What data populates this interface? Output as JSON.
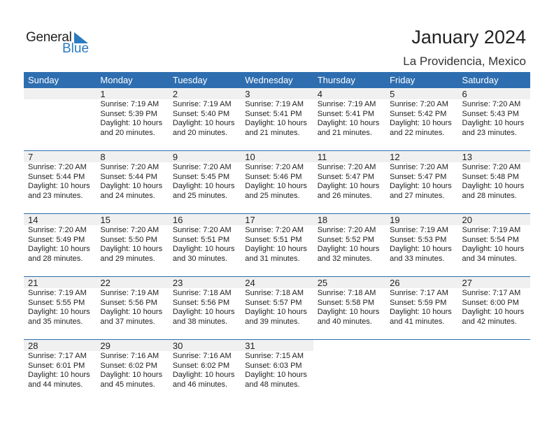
{
  "logo": {
    "general": "General",
    "blue": "Blue"
  },
  "title": "January 2024",
  "location": "La Providencia, Mexico",
  "colors": {
    "header": "#2e6eb0",
    "band": "#f0f0f0",
    "logo_blue": "#2a7bc0"
  },
  "weekdays": [
    "Sunday",
    "Monday",
    "Tuesday",
    "Wednesday",
    "Thursday",
    "Friday",
    "Saturday"
  ],
  "weeks": [
    [
      null,
      {
        "day": "1",
        "sunrise": "Sunrise: 7:19 AM",
        "sunset": "Sunset: 5:39 PM",
        "daylight": "Daylight: 10 hours",
        "minutes": "and 20 minutes."
      },
      {
        "day": "2",
        "sunrise": "Sunrise: 7:19 AM",
        "sunset": "Sunset: 5:40 PM",
        "daylight": "Daylight: 10 hours",
        "minutes": "and 20 minutes."
      },
      {
        "day": "3",
        "sunrise": "Sunrise: 7:19 AM",
        "sunset": "Sunset: 5:41 PM",
        "daylight": "Daylight: 10 hours",
        "minutes": "and 21 minutes."
      },
      {
        "day": "4",
        "sunrise": "Sunrise: 7:19 AM",
        "sunset": "Sunset: 5:41 PM",
        "daylight": "Daylight: 10 hours",
        "minutes": "and 21 minutes."
      },
      {
        "day": "5",
        "sunrise": "Sunrise: 7:20 AM",
        "sunset": "Sunset: 5:42 PM",
        "daylight": "Daylight: 10 hours",
        "minutes": "and 22 minutes."
      },
      {
        "day": "6",
        "sunrise": "Sunrise: 7:20 AM",
        "sunset": "Sunset: 5:43 PM",
        "daylight": "Daylight: 10 hours",
        "minutes": "and 23 minutes."
      }
    ],
    [
      {
        "day": "7",
        "sunrise": "Sunrise: 7:20 AM",
        "sunset": "Sunset: 5:44 PM",
        "daylight": "Daylight: 10 hours",
        "minutes": "and 23 minutes."
      },
      {
        "day": "8",
        "sunrise": "Sunrise: 7:20 AM",
        "sunset": "Sunset: 5:44 PM",
        "daylight": "Daylight: 10 hours",
        "minutes": "and 24 minutes."
      },
      {
        "day": "9",
        "sunrise": "Sunrise: 7:20 AM",
        "sunset": "Sunset: 5:45 PM",
        "daylight": "Daylight: 10 hours",
        "minutes": "and 25 minutes."
      },
      {
        "day": "10",
        "sunrise": "Sunrise: 7:20 AM",
        "sunset": "Sunset: 5:46 PM",
        "daylight": "Daylight: 10 hours",
        "minutes": "and 25 minutes."
      },
      {
        "day": "11",
        "sunrise": "Sunrise: 7:20 AM",
        "sunset": "Sunset: 5:47 PM",
        "daylight": "Daylight: 10 hours",
        "minutes": "and 26 minutes."
      },
      {
        "day": "12",
        "sunrise": "Sunrise: 7:20 AM",
        "sunset": "Sunset: 5:47 PM",
        "daylight": "Daylight: 10 hours",
        "minutes": "and 27 minutes."
      },
      {
        "day": "13",
        "sunrise": "Sunrise: 7:20 AM",
        "sunset": "Sunset: 5:48 PM",
        "daylight": "Daylight: 10 hours",
        "minutes": "and 28 minutes."
      }
    ],
    [
      {
        "day": "14",
        "sunrise": "Sunrise: 7:20 AM",
        "sunset": "Sunset: 5:49 PM",
        "daylight": "Daylight: 10 hours",
        "minutes": "and 28 minutes."
      },
      {
        "day": "15",
        "sunrise": "Sunrise: 7:20 AM",
        "sunset": "Sunset: 5:50 PM",
        "daylight": "Daylight: 10 hours",
        "minutes": "and 29 minutes."
      },
      {
        "day": "16",
        "sunrise": "Sunrise: 7:20 AM",
        "sunset": "Sunset: 5:51 PM",
        "daylight": "Daylight: 10 hours",
        "minutes": "and 30 minutes."
      },
      {
        "day": "17",
        "sunrise": "Sunrise: 7:20 AM",
        "sunset": "Sunset: 5:51 PM",
        "daylight": "Daylight: 10 hours",
        "minutes": "and 31 minutes."
      },
      {
        "day": "18",
        "sunrise": "Sunrise: 7:20 AM",
        "sunset": "Sunset: 5:52 PM",
        "daylight": "Daylight: 10 hours",
        "minutes": "and 32 minutes."
      },
      {
        "day": "19",
        "sunrise": "Sunrise: 7:19 AM",
        "sunset": "Sunset: 5:53 PM",
        "daylight": "Daylight: 10 hours",
        "minutes": "and 33 minutes."
      },
      {
        "day": "20",
        "sunrise": "Sunrise: 7:19 AM",
        "sunset": "Sunset: 5:54 PM",
        "daylight": "Daylight: 10 hours",
        "minutes": "and 34 minutes."
      }
    ],
    [
      {
        "day": "21",
        "sunrise": "Sunrise: 7:19 AM",
        "sunset": "Sunset: 5:55 PM",
        "daylight": "Daylight: 10 hours",
        "minutes": "and 35 minutes."
      },
      {
        "day": "22",
        "sunrise": "Sunrise: 7:19 AM",
        "sunset": "Sunset: 5:56 PM",
        "daylight": "Daylight: 10 hours",
        "minutes": "and 37 minutes."
      },
      {
        "day": "23",
        "sunrise": "Sunrise: 7:18 AM",
        "sunset": "Sunset: 5:56 PM",
        "daylight": "Daylight: 10 hours",
        "minutes": "and 38 minutes."
      },
      {
        "day": "24",
        "sunrise": "Sunrise: 7:18 AM",
        "sunset": "Sunset: 5:57 PM",
        "daylight": "Daylight: 10 hours",
        "minutes": "and 39 minutes."
      },
      {
        "day": "25",
        "sunrise": "Sunrise: 7:18 AM",
        "sunset": "Sunset: 5:58 PM",
        "daylight": "Daylight: 10 hours",
        "minutes": "and 40 minutes."
      },
      {
        "day": "26",
        "sunrise": "Sunrise: 7:17 AM",
        "sunset": "Sunset: 5:59 PM",
        "daylight": "Daylight: 10 hours",
        "minutes": "and 41 minutes."
      },
      {
        "day": "27",
        "sunrise": "Sunrise: 7:17 AM",
        "sunset": "Sunset: 6:00 PM",
        "daylight": "Daylight: 10 hours",
        "minutes": "and 42 minutes."
      }
    ],
    [
      {
        "day": "28",
        "sunrise": "Sunrise: 7:17 AM",
        "sunset": "Sunset: 6:01 PM",
        "daylight": "Daylight: 10 hours",
        "minutes": "and 44 minutes."
      },
      {
        "day": "29",
        "sunrise": "Sunrise: 7:16 AM",
        "sunset": "Sunset: 6:02 PM",
        "daylight": "Daylight: 10 hours",
        "minutes": "and 45 minutes."
      },
      {
        "day": "30",
        "sunrise": "Sunrise: 7:16 AM",
        "sunset": "Sunset: 6:02 PM",
        "daylight": "Daylight: 10 hours",
        "minutes": "and 46 minutes."
      },
      {
        "day": "31",
        "sunrise": "Sunrise: 7:15 AM",
        "sunset": "Sunset: 6:03 PM",
        "daylight": "Daylight: 10 hours",
        "minutes": "and 48 minutes."
      },
      null,
      null,
      null
    ]
  ]
}
